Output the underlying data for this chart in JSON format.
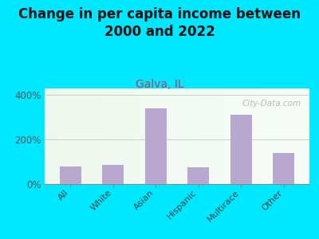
{
  "title": "Change in per capita income between\n2000 and 2022",
  "subtitle": "Galva, IL",
  "categories": [
    "All",
    "White",
    "Asian",
    "Hispanic",
    "Multirace",
    "Other"
  ],
  "values": [
    80,
    85,
    340,
    75,
    310,
    140
  ],
  "bar_color": "#b8a8d0",
  "background_outer": "#00e8ff",
  "title_fontsize": 12,
  "title_color": "#111111",
  "subtitle_fontsize": 10,
  "subtitle_color": "#aa4466",
  "ylim": [
    0,
    430
  ],
  "yticks": [
    0,
    200,
    400
  ],
  "watermark": "City-Data.com",
  "grid_color": "#cccccc",
  "xlabel_fontsize": 8,
  "ylabel_fontsize": 8.5
}
